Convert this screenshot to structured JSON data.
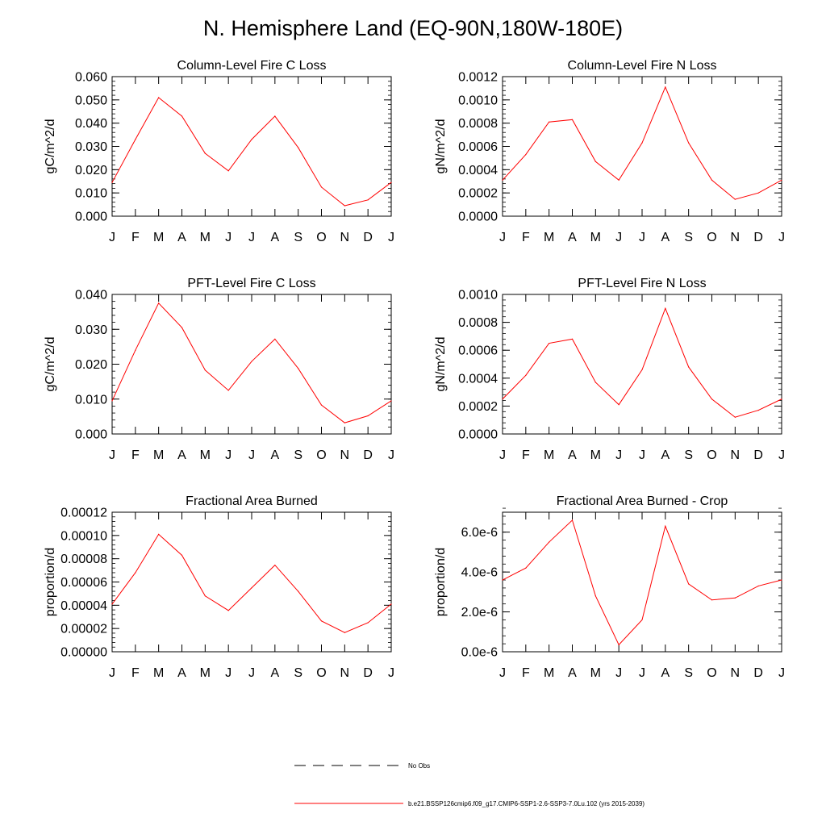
{
  "page": {
    "title": "N. Hemisphere Land (EQ-90N,180W-180E)"
  },
  "legend": [
    {
      "label": "No Obs",
      "style": "dashed",
      "color": "#000000"
    },
    {
      "label": "b.e21.BSSP126cmip6.f09_g17.CMIP6-SSP1-2.6-SSP3-7.0Lu.102 (yrs 2015-2039)",
      "style": "solid",
      "color": "#ff0000"
    }
  ],
  "colors": {
    "series": "#ff0000",
    "axis": "#000000"
  },
  "chart_data": [
    {
      "type": "line",
      "title": "Column-Level Fire C Loss",
      "ylabel": "gC/m^2/d",
      "categories": [
        "J",
        "F",
        "M",
        "A",
        "M",
        "J",
        "J",
        "A",
        "S",
        "O",
        "N",
        "D",
        "J"
      ],
      "ylim": [
        0,
        0.06
      ],
      "yticks": [
        0,
        0.01,
        0.02,
        0.03,
        0.04,
        0.05,
        0.06
      ],
      "ytick_labels": [
        "0.000",
        "0.010",
        "0.020",
        "0.030",
        "0.040",
        "0.050",
        "0.060"
      ],
      "series": [
        {
          "values": [
            0.0145,
            0.033,
            0.051,
            0.043,
            0.027,
            0.0195,
            0.033,
            0.043,
            0.0295,
            0.0125,
            0.0045,
            0.007,
            0.0145
          ]
        }
      ]
    },
    {
      "type": "line",
      "title": "Column-Level Fire N Loss",
      "ylabel": "gN/m^2/d",
      "categories": [
        "J",
        "F",
        "M",
        "A",
        "M",
        "J",
        "J",
        "A",
        "S",
        "O",
        "N",
        "D",
        "J"
      ],
      "ylim": [
        0,
        0.0012
      ],
      "yticks": [
        0,
        0.0002,
        0.0004,
        0.0006,
        0.0008,
        0.001,
        0.0012
      ],
      "ytick_labels": [
        "0.0000",
        "0.0002",
        "0.0004",
        "0.0006",
        "0.0008",
        "0.0010",
        "0.0012"
      ],
      "series": [
        {
          "values": [
            0.00031,
            0.00053,
            0.00081,
            0.00083,
            0.00047,
            0.00031,
            0.00063,
            0.00111,
            0.00063,
            0.00031,
            0.000145,
            0.0002,
            0.00031
          ]
        }
      ]
    },
    {
      "type": "line",
      "title": "PFT-Level Fire C Loss",
      "ylabel": "gC/m^2/d",
      "categories": [
        "J",
        "F",
        "M",
        "A",
        "M",
        "J",
        "J",
        "A",
        "S",
        "O",
        "N",
        "D",
        "J"
      ],
      "ylim": [
        0,
        0.04
      ],
      "yticks": [
        0,
        0.01,
        0.02,
        0.03,
        0.04
      ],
      "ytick_labels": [
        "0.000",
        "0.010",
        "0.020",
        "0.030",
        "0.040"
      ],
      "series": [
        {
          "values": [
            0.0095,
            0.024,
            0.0375,
            0.0305,
            0.0183,
            0.0125,
            0.0208,
            0.0272,
            0.0188,
            0.0083,
            0.0032,
            0.0052,
            0.0095
          ]
        }
      ]
    },
    {
      "type": "line",
      "title": "PFT-Level Fire N Loss",
      "ylabel": "gN/m^2/d",
      "categories": [
        "J",
        "F",
        "M",
        "A",
        "M",
        "J",
        "J",
        "A",
        "S",
        "O",
        "N",
        "D",
        "J"
      ],
      "ylim": [
        0,
        0.001
      ],
      "yticks": [
        0,
        0.0002,
        0.0004,
        0.0006,
        0.0008,
        0.001
      ],
      "ytick_labels": [
        "0.0000",
        "0.0002",
        "0.0004",
        "0.0006",
        "0.0008",
        "0.0010"
      ],
      "series": [
        {
          "values": [
            0.00025,
            0.00042,
            0.00065,
            0.00068,
            0.00037,
            0.00021,
            0.00046,
            0.0009,
            0.00048,
            0.00025,
            0.00012,
            0.00017,
            0.00025
          ]
        }
      ]
    },
    {
      "type": "line",
      "title": "Fractional Area Burned",
      "ylabel": "proportion/d",
      "categories": [
        "J",
        "F",
        "M",
        "A",
        "M",
        "J",
        "J",
        "A",
        "S",
        "O",
        "N",
        "D",
        "J"
      ],
      "ylim": [
        0,
        0.00012
      ],
      "yticks": [
        0,
        2e-05,
        4e-05,
        6e-05,
        8e-05,
        0.0001,
        0.00012
      ],
      "ytick_labels": [
        "0.00000",
        "0.00002",
        "0.00004",
        "0.00006",
        "0.00008",
        "0.00010",
        "0.00012"
      ],
      "series": [
        {
          "values": [
            4.1e-05,
            6.8e-05,
            0.000101,
            8.3e-05,
            4.8e-05,
            3.55e-05,
            5.5e-05,
            7.45e-05,
            5.2e-05,
            2.65e-05,
            1.65e-05,
            2.5e-05,
            4.1e-05
          ]
        }
      ]
    },
    {
      "type": "line",
      "title": "Fractional Area Burned - Crop",
      "ylabel": "proportion/d",
      "categories": [
        "J",
        "F",
        "M",
        "A",
        "M",
        "J",
        "J",
        "A",
        "S",
        "O",
        "N",
        "D",
        "J"
      ],
      "ylim": [
        0,
        7e-06
      ],
      "yticks": [
        0,
        2e-06,
        4e-06,
        6e-06
      ],
      "ytick_labels": [
        "0.0e-6",
        "2.0e-6",
        "4.0e-6",
        "6.0e-6"
      ],
      "series": [
        {
          "values": [
            3.6e-06,
            4.2e-06,
            5.5e-06,
            6.6e-06,
            2.8e-06,
            3.5e-07,
            1.6e-06,
            6.3e-06,
            3.4e-06,
            2.6e-06,
            2.7e-06,
            3.3e-06,
            3.6e-06
          ]
        }
      ]
    }
  ]
}
